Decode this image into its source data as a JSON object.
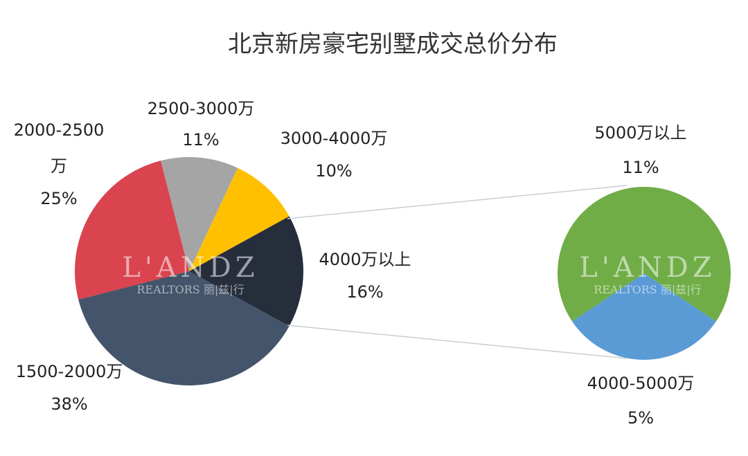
{
  "chart_data": {
    "type": "pie",
    "subtype": "pie-of-pie",
    "title": "北京新房豪宅别墅成交总价分布",
    "main_pie": [
      {
        "label": "4000万以上",
        "value": 16,
        "pct": "16%",
        "color": "#262D3B"
      },
      {
        "label": "3000-4000万",
        "value": 10,
        "pct": "10%",
        "color": "#FFC000"
      },
      {
        "label": "2500-3000万",
        "value": 11,
        "pct": "11%",
        "color": "#A5A5A5"
      },
      {
        "label": "2000-2500万",
        "value": 25,
        "pct": "25%",
        "color": "#D9444F"
      },
      {
        "label": "1500-2000万",
        "value": 38,
        "pct": "38%",
        "color": "#44546A"
      }
    ],
    "secondary_pie": [
      {
        "label": "5000万以上",
        "value": 11,
        "pct": "11%",
        "color": "#70AD47"
      },
      {
        "label": "4000-5000万",
        "value": 5,
        "pct": "5%",
        "color": "#5B9BD5"
      }
    ],
    "watermark": {
      "brand": "L'ANDZ",
      "sub": "REALTORS 丽|兹|行"
    }
  }
}
